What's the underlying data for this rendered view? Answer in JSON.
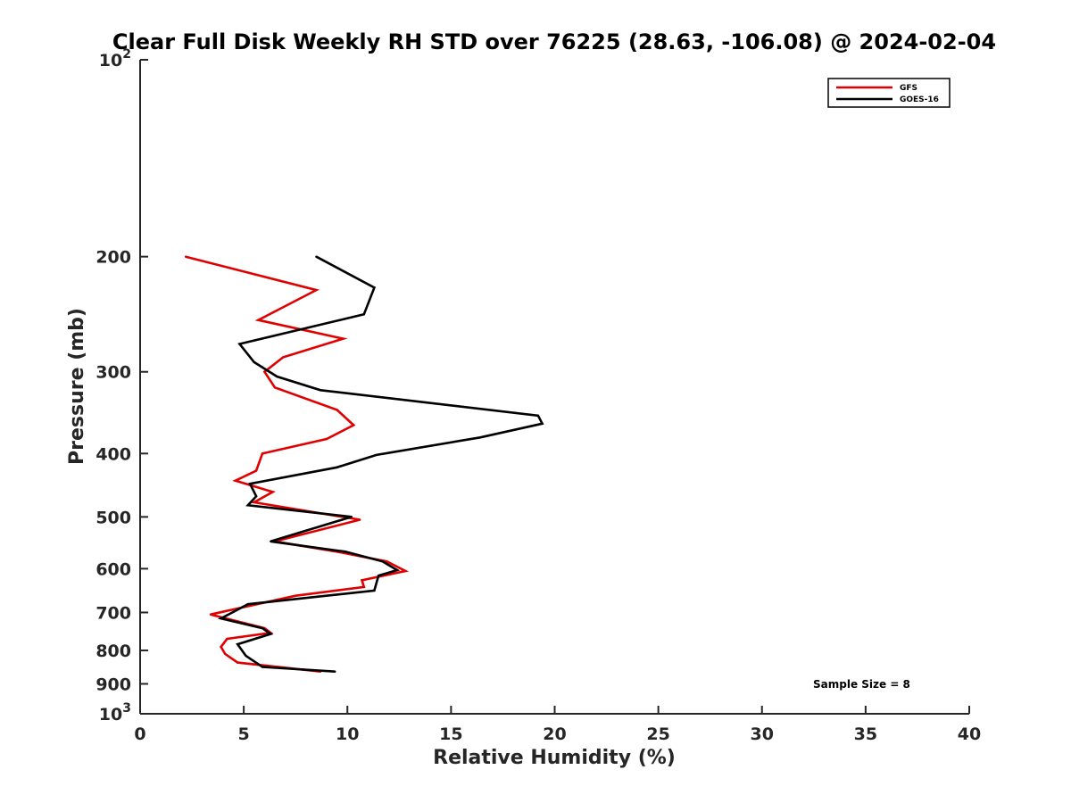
{
  "chart_data": {
    "type": "line",
    "title": "Clear Full Disk Weekly RH STD over 76225 (28.63, -106.08) @ 2024-02-04",
    "xlabel": "Relative Humidity (%)",
    "ylabel": "Pressure (mb)",
    "xlim": [
      0,
      40
    ],
    "ylim": [
      100,
      1000
    ],
    "y_scale": "log",
    "y_reversed": true,
    "grid": false,
    "legend_position": "top-right",
    "annotation": "Sample Size = 8",
    "x_ticks": [
      "0",
      "5",
      "10",
      "15",
      "20",
      "25",
      "30",
      "35",
      "40"
    ],
    "y_ticks": [
      {
        "value": 100,
        "base": "10",
        "exp": "2"
      },
      {
        "value": 200,
        "label": "200"
      },
      {
        "value": 300,
        "label": "300"
      },
      {
        "value": 400,
        "label": "400"
      },
      {
        "value": 500,
        "label": "500"
      },
      {
        "value": 600,
        "label": "600"
      },
      {
        "value": 700,
        "label": "700"
      },
      {
        "value": 800,
        "label": "800"
      },
      {
        "value": 900,
        "label": "900"
      },
      {
        "value": 1000,
        "base": "10",
        "exp": "3"
      }
    ],
    "series": [
      {
        "name": "GFS",
        "color": "#e00000",
        "points": [
          [
            2.2,
            200
          ],
          [
            8.5,
            225
          ],
          [
            5.7,
            250
          ],
          [
            9.8,
            267
          ],
          [
            6.9,
            285
          ],
          [
            6.0,
            300
          ],
          [
            6.5,
            317
          ],
          [
            9.5,
            343
          ],
          [
            10.3,
            362
          ],
          [
            9.0,
            380
          ],
          [
            5.9,
            400
          ],
          [
            5.6,
            425
          ],
          [
            4.6,
            440
          ],
          [
            6.4,
            458
          ],
          [
            5.5,
            475
          ],
          [
            10.6,
            505
          ],
          [
            6.5,
            545
          ],
          [
            9.5,
            565
          ],
          [
            11.9,
            585
          ],
          [
            12.8,
            605
          ],
          [
            10.7,
            625
          ],
          [
            10.8,
            640
          ],
          [
            7.5,
            660
          ],
          [
            3.4,
            705
          ],
          [
            6.0,
            740
          ],
          [
            6.3,
            752
          ],
          [
            4.2,
            768
          ],
          [
            3.9,
            790
          ],
          [
            4.1,
            810
          ],
          [
            4.7,
            835
          ],
          [
            8.7,
            862
          ]
        ]
      },
      {
        "name": "GOES-16",
        "color": "#000000",
        "points": [
          [
            8.5,
            200
          ],
          [
            11.3,
            223
          ],
          [
            10.8,
            245
          ],
          [
            4.8,
            272
          ],
          [
            5.5,
            290
          ],
          [
            6.6,
            305
          ],
          [
            8.7,
            320
          ],
          [
            19.2,
            350
          ],
          [
            19.4,
            360
          ],
          [
            16.4,
            378
          ],
          [
            11.4,
            402
          ],
          [
            9.5,
            420
          ],
          [
            5.3,
            445
          ],
          [
            5.6,
            465
          ],
          [
            5.2,
            480
          ],
          [
            10.2,
            500
          ],
          [
            6.3,
            545
          ],
          [
            9.9,
            565
          ],
          [
            11.7,
            585
          ],
          [
            12.4,
            603
          ],
          [
            11.5,
            615
          ],
          [
            11.3,
            648
          ],
          [
            5.2,
            680
          ],
          [
            3.9,
            715
          ],
          [
            5.9,
            740
          ],
          [
            6.3,
            755
          ],
          [
            4.7,
            783
          ],
          [
            5.1,
            815
          ],
          [
            5.9,
            848
          ],
          [
            9.4,
            862
          ]
        ]
      }
    ]
  }
}
